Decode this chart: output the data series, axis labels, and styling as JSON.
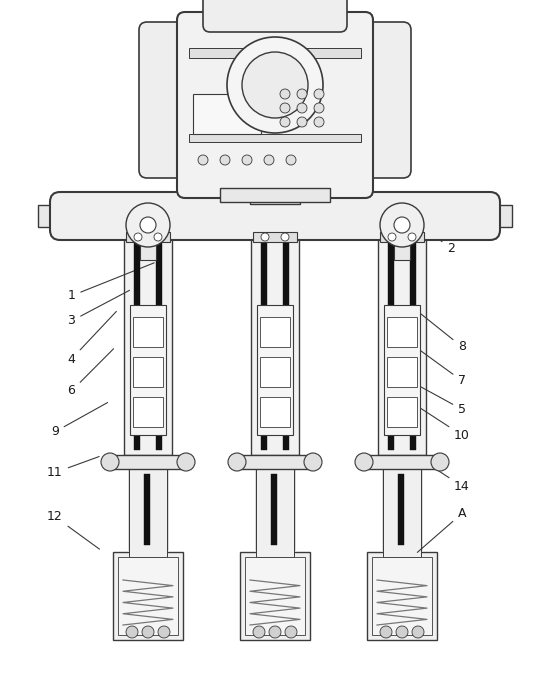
{
  "bg_color": "#ffffff",
  "line_color": "#3a3a3a",
  "lw": 1.0,
  "fig_width": 5.5,
  "fig_height": 6.8,
  "annotations": [
    [
      "1",
      [
        0.13,
        0.565
      ],
      [
        0.285,
        0.615
      ]
    ],
    [
      "2",
      [
        0.82,
        0.635
      ],
      [
        0.66,
        0.73
      ]
    ],
    [
      "3",
      [
        0.13,
        0.528
      ],
      [
        0.24,
        0.575
      ]
    ],
    [
      "4",
      [
        0.13,
        0.472
      ],
      [
        0.215,
        0.545
      ]
    ],
    [
      "5",
      [
        0.84,
        0.398
      ],
      [
        0.745,
        0.44
      ]
    ],
    [
      "6",
      [
        0.13,
        0.425
      ],
      [
        0.21,
        0.49
      ]
    ],
    [
      "7",
      [
        0.84,
        0.44
      ],
      [
        0.755,
        0.49
      ]
    ],
    [
      "8",
      [
        0.84,
        0.49
      ],
      [
        0.755,
        0.545
      ]
    ],
    [
      "9",
      [
        0.1,
        0.365
      ],
      [
        0.2,
        0.41
      ]
    ],
    [
      "10",
      [
        0.84,
        0.36
      ],
      [
        0.745,
        0.41
      ]
    ],
    [
      "11",
      [
        0.1,
        0.305
      ],
      [
        0.185,
        0.33
      ]
    ],
    [
      "12",
      [
        0.1,
        0.24
      ],
      [
        0.185,
        0.19
      ]
    ],
    [
      "14",
      [
        0.84,
        0.285
      ],
      [
        0.755,
        0.33
      ]
    ],
    [
      "A",
      [
        0.84,
        0.245
      ],
      [
        0.755,
        0.185
      ]
    ]
  ]
}
